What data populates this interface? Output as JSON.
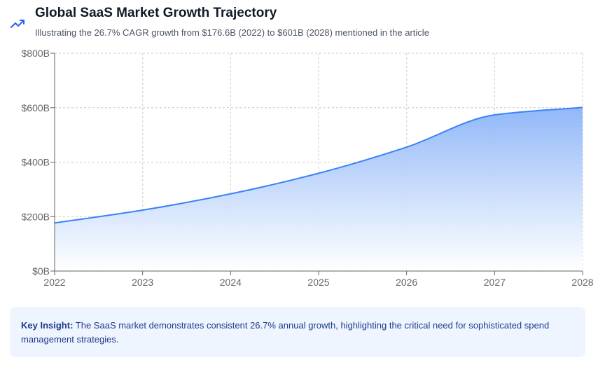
{
  "header": {
    "title": "Global SaaS Market Growth Trajectory",
    "subtitle": "Illustrating the 26.7% CAGR growth from $176.6B (2022) to $601B (2028) mentioned in the article",
    "icon": "trending-up-icon"
  },
  "insight": {
    "label": "Key Insight:",
    "text": "The SaaS market demonstrates consistent 26.7% annual growth, highlighting the critical need for sophisticated spend management strategies."
  },
  "colors": {
    "line": "#3b82f6",
    "fill_top": "#8ab4f8",
    "fill_bottom": "#ffffff",
    "grid": "#cccccc",
    "axis": "#666666",
    "icon": "#2563eb"
  },
  "chart_data": {
    "type": "area",
    "title": "Global SaaS Market Growth Trajectory",
    "x": [
      "2022",
      "2023",
      "2024",
      "2025",
      "2026",
      "2027",
      "2028"
    ],
    "y_ticks": [
      "$0B",
      "$200B",
      "$400B",
      "$600B",
      "$800B"
    ],
    "series": [
      {
        "values": [
          176.6,
          223.8,
          283.5,
          359.2,
          455.1,
          573.6,
          601
        ]
      }
    ],
    "ylim": [
      0,
      800
    ],
    "grid": true,
    "legend": "none"
  }
}
